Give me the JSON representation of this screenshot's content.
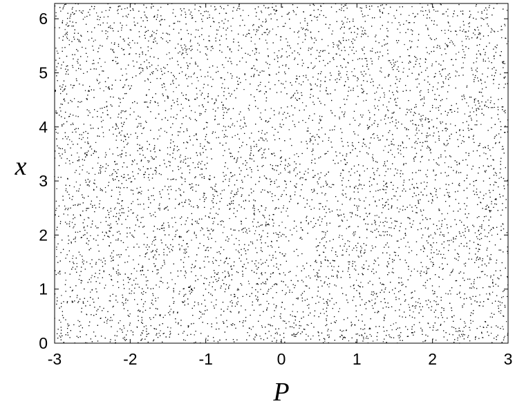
{
  "chart_data": {
    "type": "scatter",
    "title": "",
    "xlabel": "P",
    "ylabel": "x",
    "xlim": [
      -3,
      3
    ],
    "ylim": [
      0,
      6.2832
    ],
    "x_ticks": [
      -3,
      -2,
      -1,
      0,
      1,
      2,
      3
    ],
    "y_ticks": [
      0,
      1,
      2,
      3,
      4,
      5,
      6
    ],
    "x_tick_labels": [
      "-3",
      "-2",
      "-1",
      "0",
      "1",
      "2",
      "3"
    ],
    "y_tick_labels": [
      "0",
      "1",
      "2",
      "3",
      "4",
      "5",
      "6"
    ],
    "grid": false,
    "legend": "none",
    "marker": "dot",
    "marker_color": "#000000",
    "distribution": "approximately uniform over P in [-3, 3] and x in [0, 2π]",
    "point_count_estimate": 12000,
    "sample_points": [
      [
        -2.7,
        0.4
      ],
      [
        -2.1,
        1.3
      ],
      [
        -1.6,
        2.2
      ],
      [
        -0.9,
        3.1
      ],
      [
        -0.3,
        4.0
      ],
      [
        0.2,
        4.9
      ],
      [
        0.8,
        5.7
      ],
      [
        1.4,
        0.9
      ],
      [
        1.9,
        1.8
      ],
      [
        2.5,
        2.7
      ],
      [
        -2.4,
        3.6
      ],
      [
        -1.2,
        4.5
      ],
      [
        0.5,
        5.4
      ],
      [
        1.1,
        6.1
      ],
      [
        2.8,
        0.2
      ],
      [
        -0.6,
        1.0
      ],
      [
        2.2,
        5.2
      ],
      [
        -1.9,
        5.9
      ],
      [
        1.6,
        3.3
      ],
      [
        0.0,
        2.5
      ]
    ]
  }
}
